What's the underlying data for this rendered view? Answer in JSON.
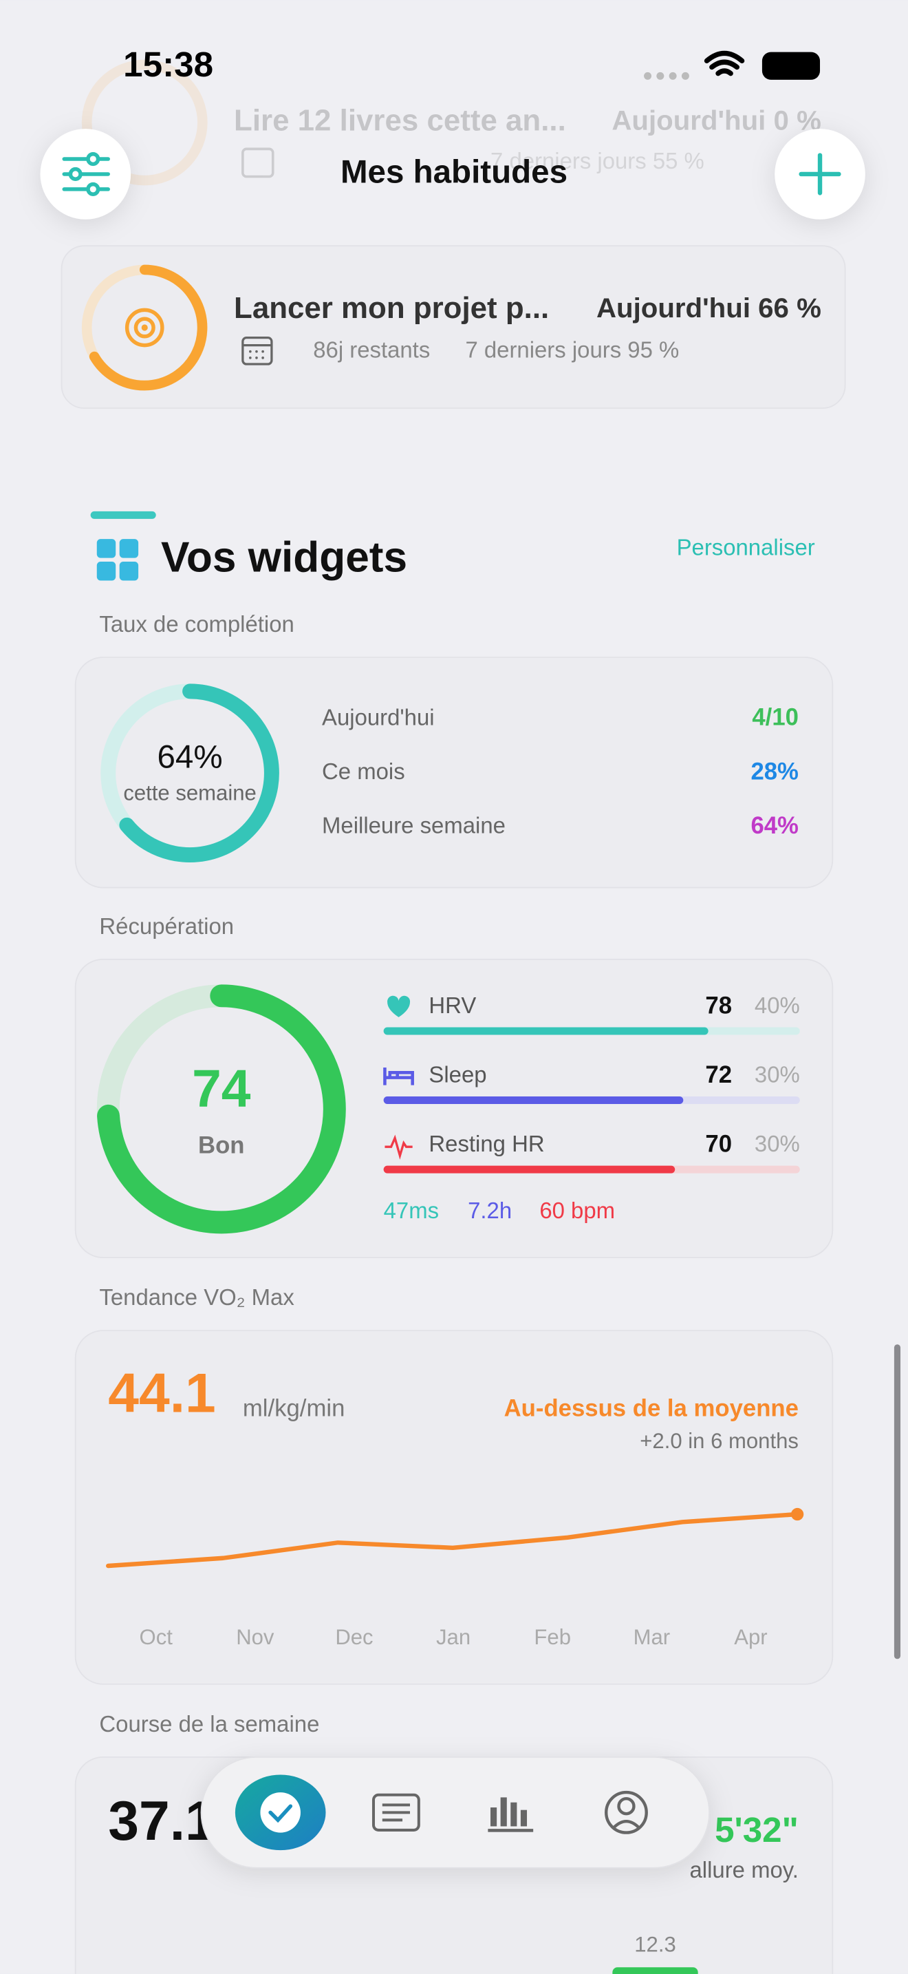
{
  "status_bar": {
    "time": "15:38"
  },
  "header": {
    "title": "Mes habitudes"
  },
  "habits": [
    {
      "title": "Lire 12 livres cette an...",
      "today": "Aujourd'hui 0 %",
      "last_7_days": "7 derniers jours 55 %"
    },
    {
      "title": "Lancer mon projet p...",
      "today": "Aujourd'hui 66 %",
      "remaining": "86j restants",
      "last_7_days": "7 derniers jours 95 %"
    }
  ],
  "widgets": {
    "title": "Vos widgets",
    "action": "Personnaliser"
  },
  "completion": {
    "label": "Taux de complétion",
    "value": 64,
    "value_label": "64%",
    "caption": "cette semaine",
    "rows": [
      {
        "label": "Aujourd'hui",
        "value": "4/10"
      },
      {
        "label": "Ce mois",
        "value": "28%"
      },
      {
        "label": "Meilleure semaine",
        "value": "64%"
      }
    ]
  },
  "recovery": {
    "label": "Récupération",
    "score": 74,
    "status": "Bon",
    "metrics": [
      {
        "name": "HRV",
        "value": 78,
        "weight": "40%",
        "detail": "47ms"
      },
      {
        "name": "Sleep",
        "value": 72,
        "weight": "30%",
        "detail": "7.2h"
      },
      {
        "name": "Resting HR",
        "value": 70,
        "weight": "30%",
        "detail": "60 bpm"
      }
    ]
  },
  "vo2": {
    "label": "Tendance VO₂ Max",
    "value": "44.1",
    "unit": "ml/kg/min",
    "status": "Au-dessus de la moyenne",
    "change": "+2.0 in 6 months",
    "chart": {
      "type": "line",
      "color": "#f7892b",
      "categories": [
        "Oct",
        "Nov",
        "Dec",
        "Jan",
        "Feb",
        "Mar",
        "Apr"
      ],
      "values": [
        42.1,
        42.4,
        43.0,
        42.8,
        43.2,
        43.8,
        44.1
      ]
    }
  },
  "run": {
    "label": "Course de la semaine",
    "distance": "37.1",
    "pace": "5'32\"",
    "pace_label": "allure moy.",
    "bar_label": "12.3"
  }
}
